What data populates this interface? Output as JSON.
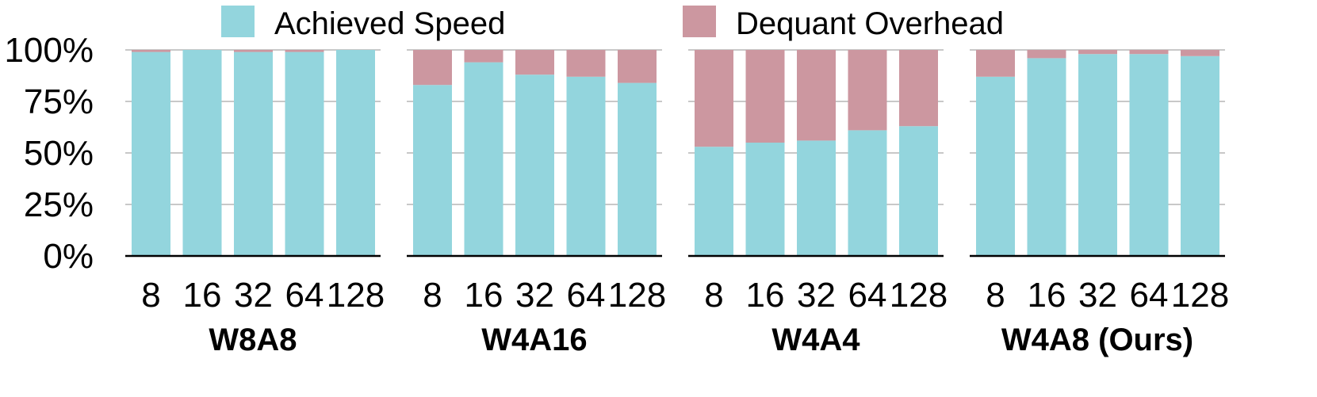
{
  "chart_data": {
    "type": "bar",
    "stacked": true,
    "legend": {
      "placement": "top",
      "entries": [
        {
          "label": "Achieved Speed",
          "color": "#93d5dd"
        },
        {
          "label": "Dequant Overhead",
          "color": "#cc97a0"
        }
      ]
    },
    "ylim": [
      0,
      100
    ],
    "yticks": [
      "0%",
      "25%",
      "50%",
      "75%",
      "100%"
    ],
    "grid": "horizontal",
    "panels": [
      {
        "title": "W8A8",
        "categories": [
          "8",
          "16",
          "32",
          "64",
          "128"
        ],
        "series": [
          {
            "name": "Achieved Speed",
            "values": [
              99,
              100,
              99,
              99,
              100
            ]
          },
          {
            "name": "Dequant Overhead",
            "values": [
              1,
              0,
              1,
              1,
              0
            ]
          }
        ]
      },
      {
        "title": "W4A16",
        "categories": [
          "8",
          "16",
          "32",
          "64",
          "128"
        ],
        "series": [
          {
            "name": "Achieved Speed",
            "values": [
              83,
              94,
              88,
              87,
              84
            ]
          },
          {
            "name": "Dequant Overhead",
            "values": [
              17,
              6,
              12,
              13,
              16
            ]
          }
        ]
      },
      {
        "title": "W4A4",
        "categories": [
          "8",
          "16",
          "32",
          "64",
          "128"
        ],
        "series": [
          {
            "name": "Achieved Speed",
            "values": [
              53,
              55,
              56,
              61,
              63
            ]
          },
          {
            "name": "Dequant Overhead",
            "values": [
              47,
              45,
              44,
              39,
              37
            ]
          }
        ]
      },
      {
        "title": "W4A8 (Ours)",
        "categories": [
          "8",
          "16",
          "32",
          "64",
          "128"
        ],
        "series": [
          {
            "name": "Achieved Speed",
            "values": [
              87,
              96,
              98,
              98,
              97
            ]
          },
          {
            "name": "Dequant Overhead",
            "values": [
              13,
              4,
              2,
              2,
              3
            ]
          }
        ]
      }
    ]
  }
}
